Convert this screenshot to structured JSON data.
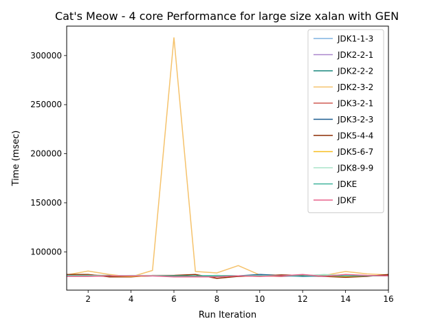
{
  "chart_data": {
    "type": "line",
    "title": "Cat's Meow - 4 core Performance for large size xalan with GEN",
    "xlabel": "Run Iteration",
    "ylabel": "Time (msec)",
    "xlim": [
      1,
      16
    ],
    "ylim": [
      61000,
      330000
    ],
    "xticks": [
      2,
      4,
      6,
      8,
      10,
      12,
      14,
      16
    ],
    "yticks": [
      100000,
      150000,
      200000,
      250000,
      300000
    ],
    "legend_position": "top-right",
    "x": [
      1,
      2,
      3,
      4,
      5,
      6,
      7,
      8,
      9,
      10,
      11,
      12,
      13,
      14,
      15,
      16
    ],
    "series": [
      {
        "name": "JDK1-1-3",
        "color": "#7fb2e0",
        "values": [
          76000,
          76000,
          75500,
          75500,
          75500,
          75000,
          75500,
          75000,
          75500,
          75500,
          75500,
          75500,
          75000,
          75500,
          75500,
          75500
        ]
      },
      {
        "name": "JDK2-2-1",
        "color": "#a984cc",
        "values": [
          75500,
          75500,
          75000,
          75000,
          75500,
          75000,
          75000,
          75500,
          75000,
          75500,
          75000,
          75500,
          75000,
          75000,
          75500,
          75500
        ]
      },
      {
        "name": "JDK2-2-2",
        "color": "#17867c",
        "values": [
          76000,
          76000,
          76000,
          75500,
          75500,
          75500,
          75500,
          76000,
          75500,
          75500,
          76000,
          76000,
          76500,
          75500,
          75500,
          76000
        ]
      },
      {
        "name": "JDK2-3-2",
        "color": "#f5c26b",
        "values": [
          76500,
          80500,
          77000,
          74500,
          81000,
          318500,
          80000,
          78500,
          86000,
          76500,
          75500,
          75500,
          76000,
          80000,
          77500,
          76500
        ]
      },
      {
        "name": "JDK3-2-1",
        "color": "#cf5a52",
        "values": [
          76000,
          76500,
          75500,
          75000,
          75500,
          75500,
          75000,
          75500,
          75000,
          75500,
          75000,
          76500,
          75500,
          75000,
          75500,
          76000
        ]
      },
      {
        "name": "JDK3-2-3",
        "color": "#1a5c8f",
        "values": [
          76000,
          76000,
          75000,
          75000,
          75500,
          75500,
          75000,
          75500,
          75500,
          77000,
          76000,
          75000,
          75500,
          75500,
          75500,
          75500
        ]
      },
      {
        "name": "JDK5-4-4",
        "color": "#8b2c00",
        "values": [
          77000,
          77000,
          74500,
          74500,
          76000,
          76000,
          77000,
          73000,
          75000,
          75500,
          76500,
          76000,
          75000,
          74000,
          75000,
          77000
        ]
      },
      {
        "name": "JDK5-6-7",
        "color": "#f7bd1e",
        "values": [
          75500,
          76000,
          75500,
          75000,
          75500,
          75500,
          75500,
          75500,
          75500,
          75000,
          75500,
          75500,
          75500,
          75000,
          75500,
          75500
        ]
      },
      {
        "name": "JDK8-9-9",
        "color": "#a8e4c8",
        "values": [
          76000,
          76000,
          75500,
          76000,
          76000,
          75500,
          75500,
          76000,
          75500,
          76000,
          75500,
          75500,
          77000,
          76000,
          75500,
          75500
        ]
      },
      {
        "name": "JDKE",
        "color": "#3fb39b",
        "values": [
          75500,
          75500,
          75500,
          75500,
          75500,
          75500,
          75500,
          75500,
          75500,
          75500,
          75500,
          75500,
          75500,
          75500,
          75500,
          75500
        ]
      },
      {
        "name": "JDKF",
        "color": "#e8618c",
        "values": [
          75000,
          75000,
          75500,
          75500,
          75500,
          74500,
          74500,
          74500,
          75500,
          75000,
          75500,
          77000,
          75000,
          77000,
          76000,
          75500
        ]
      }
    ]
  }
}
